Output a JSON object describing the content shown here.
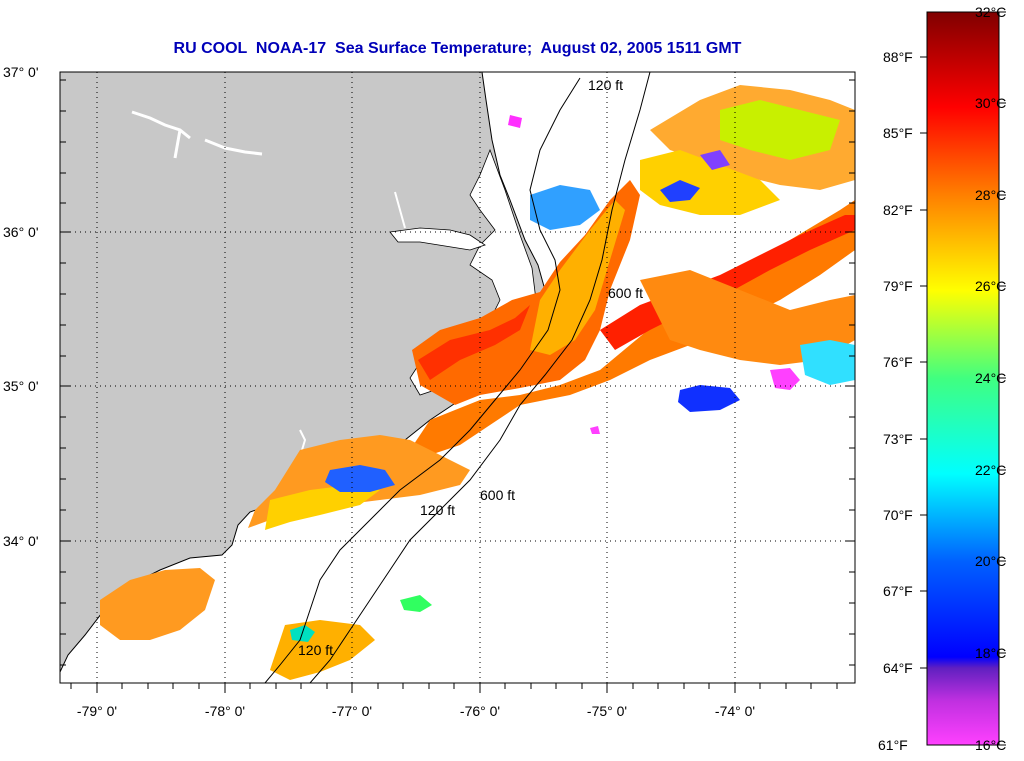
{
  "title": "RU COOL  NOAA-17  Sea Surface Temperature;  August 02, 2005 1511 GMT",
  "map": {
    "lat_labels": [
      "37° 0'",
      "36° 0'",
      "35° 0'",
      "34° 0'"
    ],
    "lon_labels": [
      "-79° 0'",
      "-78° 0'",
      "-77° 0'",
      "-76° 0'",
      "-75° 0'",
      "-74° 0'"
    ],
    "contour_labels": [
      "120 ft",
      "600 ft"
    ],
    "colors": {
      "land": "#c8c8c8",
      "ocean_no_data": "#ffffff",
      "grid": "#000000"
    }
  },
  "colorbar": {
    "celsius": [
      "32°C",
      "30°C",
      "28°C",
      "26°C",
      "24°C",
      "22°C",
      "20°C",
      "18°C",
      "16°C"
    ],
    "fahrenheit": [
      "88°F",
      "85°F",
      "82°F",
      "79°F",
      "76°F",
      "73°F",
      "70°F",
      "67°F",
      "64°F",
      "61°F"
    ],
    "range_c": [
      16,
      32
    ],
    "colors": [
      "#8b0000",
      "#ff0000",
      "#ff8000",
      "#ffff00",
      "#80ff00",
      "#00ffc0",
      "#0080ff",
      "#0000ff",
      "#8000c0",
      "#ff00ff"
    ]
  }
}
